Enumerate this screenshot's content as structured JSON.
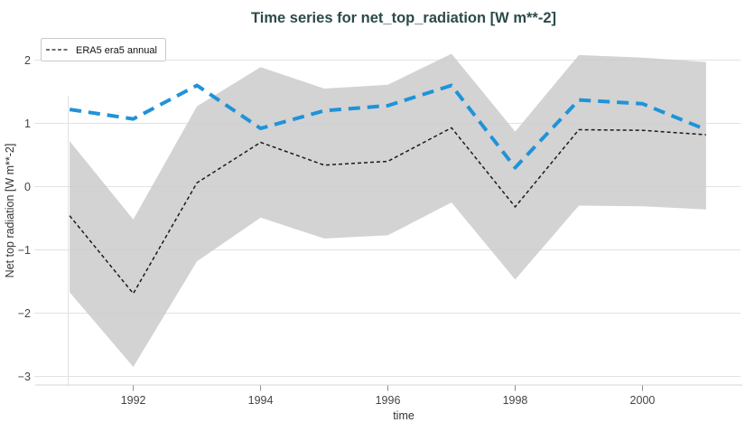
{
  "colors": {
    "title": "#2d4a4a",
    "blue_line": "#1f93d9",
    "era5_line": "#1a1a1a",
    "band": "#cbcbcb",
    "grid": "#e2e2e2",
    "axis_line": "#dedede",
    "tick_mark": "#8c8c8c",
    "tick_label": "#444444",
    "axis_title": "#333333",
    "legend_border": "#c9c9c9",
    "legend_text": "#111111"
  },
  "legend": {
    "label": "ERA5 era5 annual",
    "position": "top-left"
  },
  "chart_data": {
    "type": "line",
    "title": "Time series for net_top_radiation [W m**-2]",
    "xlabel": "time",
    "ylabel": "Net top radiation [W m**-2]",
    "x": [
      1991,
      1992,
      1993,
      1994,
      1995,
      1996,
      1997,
      1998,
      1999,
      2000,
      2001
    ],
    "series": [
      {
        "name": "ERA5 era5 annual",
        "style": "dashed-thin-black",
        "in_legend": true,
        "values": [
          -0.46,
          -1.69,
          0.06,
          0.7,
          0.34,
          0.4,
          0.93,
          -0.32,
          0.9,
          0.89,
          0.82
        ]
      },
      {
        "name": "",
        "style": "dashed-thick-blue",
        "in_legend": false,
        "values": [
          1.22,
          1.07,
          1.6,
          0.92,
          1.2,
          1.28,
          1.6,
          0.3,
          1.37,
          1.31,
          0.9
        ]
      }
    ],
    "band": {
      "upper": [
        0.72,
        -0.52,
        1.27,
        1.89,
        1.55,
        1.61,
        2.1,
        0.87,
        2.08,
        2.04,
        1.97
      ],
      "lower": [
        -1.67,
        -2.85,
        -1.18,
        -0.49,
        -0.82,
        -0.77,
        -0.25,
        -1.47,
        -0.3,
        -0.31,
        -0.36
      ],
      "opacity": 0.85
    },
    "yticks": {
      "values": [
        2,
        1,
        0,
        -1,
        -2,
        -3
      ],
      "labels": [
        "2",
        "1",
        "0",
        "−1",
        "−2",
        "−3"
      ]
    },
    "xticks": {
      "values": [
        1992,
        1994,
        1996,
        1998,
        2000
      ],
      "labels": [
        "1992",
        "1994",
        "1996",
        "1998",
        "2000"
      ]
    },
    "xlim": [
      1990.97,
      2001.54
    ],
    "ylim": [
      -3.15,
      2.307
    ],
    "grid": true,
    "legend_position": "top-left"
  }
}
